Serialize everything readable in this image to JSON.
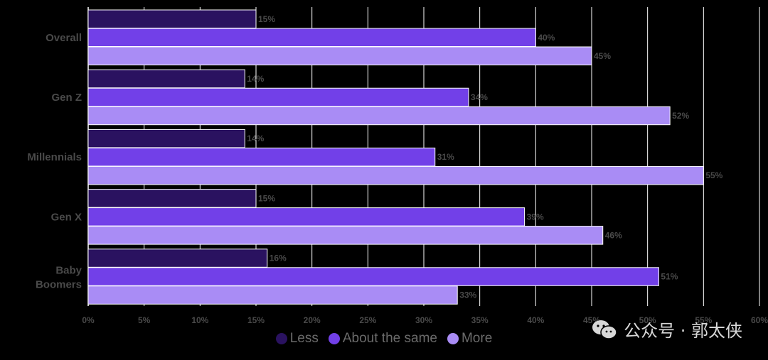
{
  "chart_data": {
    "type": "bar",
    "orientation": "horizontal",
    "categories": [
      "Overall",
      "Gen Z",
      "Millennials",
      "Gen X",
      "Baby Boomers"
    ],
    "series": [
      {
        "name": "Less",
        "color": "#2a1260",
        "values": [
          15,
          14,
          14,
          15,
          16
        ]
      },
      {
        "name": "About the same",
        "color": "#7240e8",
        "values": [
          40,
          34,
          31,
          39,
          51
        ]
      },
      {
        "name": "More",
        "color": "#a98cf5",
        "values": [
          45,
          52,
          55,
          46,
          33
        ]
      }
    ],
    "xlim": [
      0,
      60
    ],
    "x_ticks": [
      0,
      5,
      10,
      15,
      20,
      25,
      30,
      35,
      40,
      45,
      50,
      55,
      60
    ],
    "x_tick_suffix": "%",
    "data_label_suffix": "%",
    "grid": "vertical",
    "legend_position": "bottom-center"
  },
  "legend": {
    "items": [
      {
        "label": "Less",
        "color": "#2a1260"
      },
      {
        "label": "About the same",
        "color": "#7240e8"
      },
      {
        "label": "More",
        "color": "#a98cf5"
      }
    ]
  },
  "watermark": {
    "text": "公众号 · 郭太侠",
    "icon": "wechat-icon"
  }
}
